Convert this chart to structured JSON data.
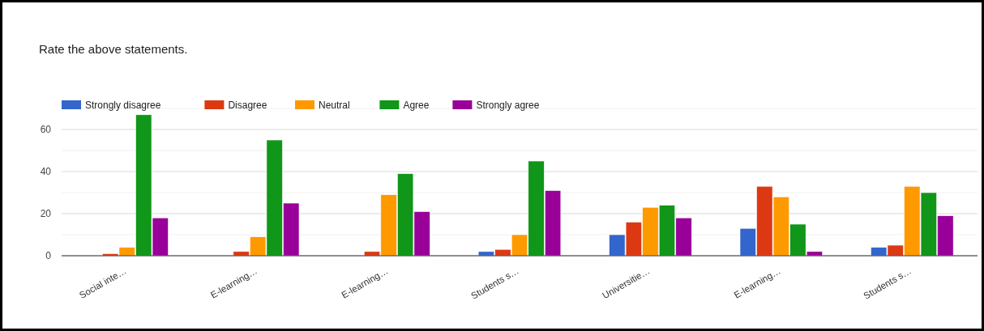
{
  "chart_data": {
    "type": "bar",
    "title": "Rate the above statements.",
    "categories": [
      "Social inte…",
      "E-learning…",
      "E-learning…",
      "Students s…",
      "Universitie…",
      "E-learning…",
      "Students s…"
    ],
    "series": [
      {
        "name": "Strongly disagree",
        "color": "#3366cc",
        "values": [
          0,
          0,
          0,
          2,
          10,
          13,
          4
        ]
      },
      {
        "name": "Disagree",
        "color": "#dc3912",
        "values": [
          1,
          2,
          2,
          3,
          16,
          33,
          5
        ]
      },
      {
        "name": "Neutral",
        "color": "#ff9900",
        "values": [
          4,
          9,
          29,
          10,
          23,
          28,
          33
        ]
      },
      {
        "name": "Agree",
        "color": "#109618",
        "values": [
          67,
          55,
          39,
          45,
          24,
          15,
          30
        ]
      },
      {
        "name": "Strongly agree",
        "color": "#990099",
        "values": [
          18,
          25,
          21,
          31,
          18,
          2,
          19
        ]
      }
    ],
    "ylim": [
      0,
      70
    ],
    "yticks": [
      0,
      {
        "value": 10,
        "label": null
      },
      20,
      {
        "value": 30,
        "label": null
      },
      40,
      {
        "value": 50,
        "label": null
      },
      60,
      {
        "value": 70,
        "label": null
      }
    ],
    "grid": true,
    "legend": "top left"
  }
}
